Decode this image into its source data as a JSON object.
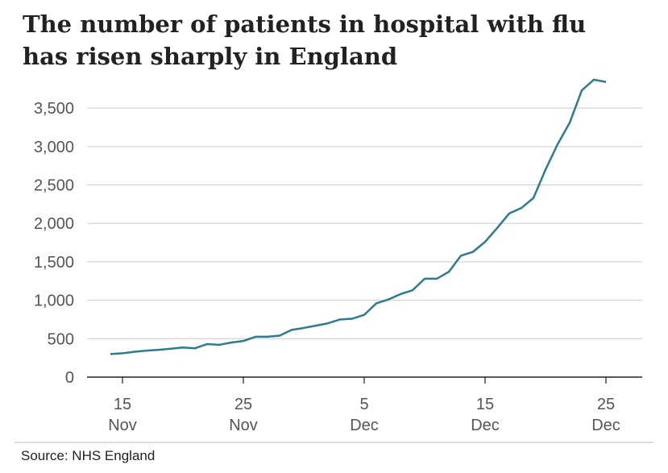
{
  "chart_data": {
    "type": "line",
    "title": [
      "The number of patients in hospital with flu",
      "has risen sharply in England"
    ],
    "source": "Source: NHS England",
    "x": [
      "14 Nov",
      "15 Nov",
      "16 Nov",
      "17 Nov",
      "18 Nov",
      "19 Nov",
      "20 Nov",
      "21 Nov",
      "22 Nov",
      "23 Nov",
      "24 Nov",
      "25 Nov",
      "26 Nov",
      "27 Nov",
      "28 Nov",
      "29 Nov",
      "30 Nov",
      "1 Dec",
      "2 Dec",
      "3 Dec",
      "4 Dec",
      "5 Dec",
      "6 Dec",
      "7 Dec",
      "8 Dec",
      "9 Dec",
      "10 Dec",
      "11 Dec",
      "12 Dec",
      "13 Dec",
      "14 Dec",
      "15 Dec",
      "16 Dec",
      "17 Dec",
      "18 Dec",
      "19 Dec",
      "20 Dec",
      "21 Dec",
      "22 Dec",
      "23 Dec",
      "24 Dec",
      "25 Dec"
    ],
    "series": [
      {
        "name": "Patients in hospital with flu",
        "color": "#2b7c8e",
        "values": [
          300,
          310,
          330,
          345,
          355,
          370,
          385,
          375,
          430,
          420,
          450,
          470,
          525,
          525,
          540,
          615,
          640,
          670,
          700,
          750,
          760,
          810,
          960,
          1010,
          1080,
          1130,
          1280,
          1280,
          1370,
          1580,
          1630,
          1760,
          1940,
          2130,
          2200,
          2330,
          2700,
          3030,
          3310,
          3730,
          3870,
          3840
        ]
      }
    ],
    "ylim": [
      0,
      3900
    ],
    "yticks": [
      0,
      500,
      {
        "value": 1000,
        "label": "1,000"
      },
      {
        "value": 1500,
        "label": "1,500"
      },
      {
        "value": 2000,
        "label": "2,000"
      },
      {
        "value": 2500,
        "label": "2,500"
      },
      {
        "value": 3000,
        "label": "3,000"
      },
      {
        "value": 3500,
        "label": "3,500"
      }
    ],
    "xticks": [
      {
        "value": "15 Nov",
        "label": [
          "15",
          "Nov"
        ]
      },
      {
        "value": "25 Nov",
        "label": [
          "25",
          "Nov"
        ]
      },
      {
        "value": "5 Dec",
        "label": [
          "5",
          "Dec"
        ]
      },
      {
        "value": "15 Dec",
        "label": [
          "15",
          "Dec"
        ]
      },
      {
        "value": "25 Dec",
        "label": [
          "25",
          "Dec"
        ]
      }
    ],
    "grid": true
  }
}
